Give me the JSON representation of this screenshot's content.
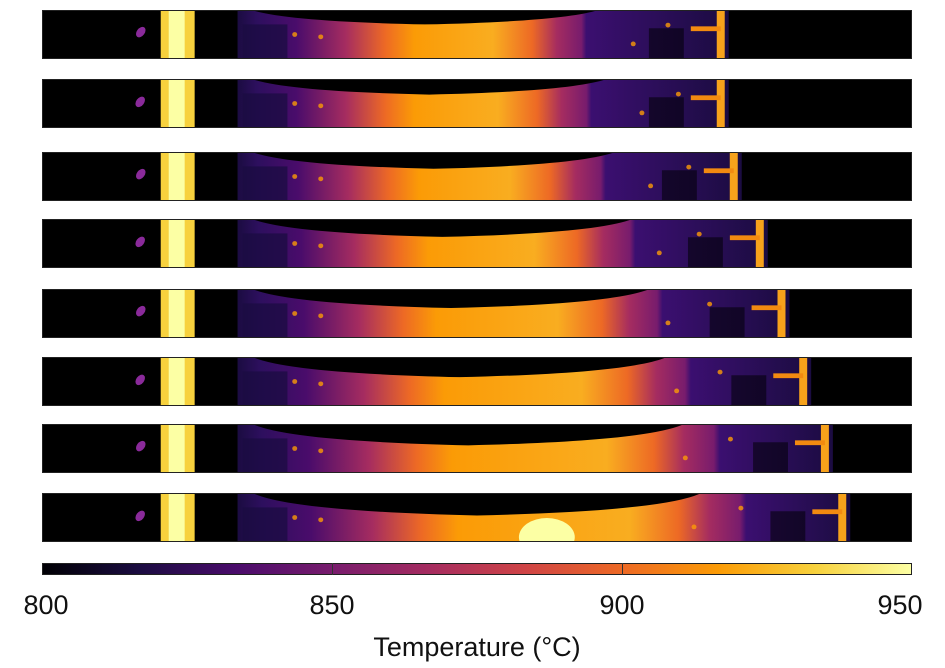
{
  "chart_data": {
    "type": "heatmap",
    "description_of_frames": "eight stacked thermal image strips",
    "frame_count": 8,
    "colormap": "inferno",
    "colormap_stops": [
      "#000004",
      "#1b0c41",
      "#4a0c6b",
      "#781c6d",
      "#a52c60",
      "#cf4446",
      "#ed6925",
      "#fb9b06",
      "#f7d13d",
      "#fcffa4"
    ],
    "colorbar": {
      "min": 800,
      "max": 950,
      "ticks": [
        800,
        850,
        900,
        950
      ],
      "tick_labels": [
        "800",
        "850",
        "900",
        "950"
      ],
      "label": "Temperature (°C)",
      "placement": "bottom"
    },
    "frames": [
      {
        "hot_zone_end_fraction": 0.62,
        "plate_end_fraction": 0.79
      },
      {
        "hot_zone_end_fraction": 0.63,
        "plate_end_fraction": 0.79
      },
      {
        "hot_zone_end_fraction": 0.64,
        "plate_end_fraction": 0.805
      },
      {
        "hot_zone_end_fraction": 0.66,
        "plate_end_fraction": 0.835
      },
      {
        "hot_zone_end_fraction": 0.68,
        "plate_end_fraction": 0.86
      },
      {
        "hot_zone_end_fraction": 0.7,
        "plate_end_fraction": 0.885
      },
      {
        "hot_zone_end_fraction": 0.72,
        "plate_end_fraction": 0.91
      },
      {
        "hot_zone_end_fraction": 0.74,
        "plate_end_fraction": 0.93
      }
    ]
  }
}
